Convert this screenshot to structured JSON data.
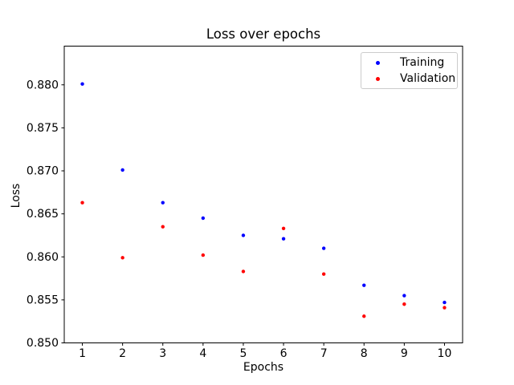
{
  "chart_data": {
    "type": "scatter",
    "title": "Loss over epochs",
    "xlabel": "Epochs",
    "ylabel": "Loss",
    "x": [
      1,
      2,
      3,
      4,
      5,
      6,
      7,
      8,
      9,
      10
    ],
    "series": [
      {
        "name": "Training",
        "color": "#0000ff",
        "values": [
          0.8801,
          0.8701,
          0.8663,
          0.8645,
          0.8625,
          0.8621,
          0.861,
          0.8567,
          0.8555,
          0.8547
        ]
      },
      {
        "name": "Validation",
        "color": "#ff0000",
        "values": [
          0.8663,
          0.8599,
          0.8635,
          0.8602,
          0.8583,
          0.8633,
          0.858,
          0.8531,
          0.8545,
          0.8541
        ]
      }
    ],
    "xlim": [
      0.55,
      10.45
    ],
    "ylim": [
      0.85,
      0.8845
    ],
    "xticks": [
      1,
      2,
      3,
      4,
      5,
      6,
      7,
      8,
      9,
      10
    ],
    "xtick_labels": [
      "1",
      "2",
      "3",
      "4",
      "5",
      "6",
      "7",
      "8",
      "9",
      "10"
    ],
    "yticks": [
      0.85,
      0.855,
      0.86,
      0.865,
      0.87,
      0.875,
      0.88
    ],
    "ytick_labels": [
      "0.850",
      "0.855",
      "0.860",
      "0.865",
      "0.870",
      "0.875",
      "0.880"
    ],
    "grid": false,
    "marker": "point",
    "legend": {
      "position": "upper right",
      "entries": [
        "Training",
        "Validation"
      ]
    },
    "background_color": "#ffffff",
    "axis_color": "#000000",
    "text_color": "#000000",
    "legend_border_color": "#cccccc"
  }
}
